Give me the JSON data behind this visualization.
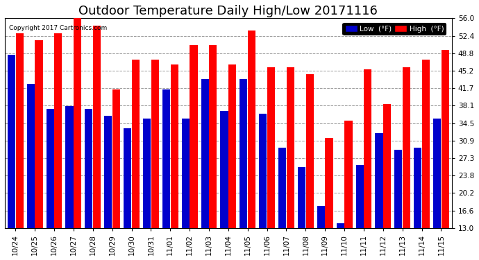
{
  "title": "Outdoor Temperature Daily High/Low 20171116",
  "copyright": "Copyright 2017 Cartronics.com",
  "categories": [
    "10/24",
    "10/25",
    "10/26",
    "10/27",
    "10/28",
    "10/29",
    "10/30",
    "10/31",
    "11/01",
    "11/02",
    "11/03",
    "11/04",
    "11/05",
    "11/06",
    "11/07",
    "11/08",
    "11/09",
    "11/10",
    "11/11",
    "11/12",
    "11/13",
    "11/14",
    "11/15"
  ],
  "high_values": [
    53.0,
    51.5,
    53.0,
    56.0,
    54.5,
    41.5,
    47.5,
    47.5,
    46.5,
    50.5,
    50.5,
    46.5,
    53.5,
    46.0,
    46.0,
    44.5,
    31.5,
    35.0,
    45.5,
    38.5,
    46.0,
    47.5,
    49.5
  ],
  "low_values": [
    48.5,
    42.5,
    37.5,
    38.0,
    37.5,
    36.0,
    33.5,
    35.5,
    41.5,
    35.5,
    43.5,
    37.0,
    43.5,
    36.5,
    29.5,
    25.5,
    17.5,
    14.0,
    26.0,
    32.5,
    29.0,
    29.5,
    35.5
  ],
  "bar_color_high": "#ff0000",
  "bar_color_low": "#0000cc",
  "bg_color": "#ffffff",
  "grid_color": "#999999",
  "ylim_min": 13.0,
  "ylim_max": 56.0,
  "yticks": [
    13.0,
    16.6,
    20.2,
    23.8,
    27.3,
    30.9,
    34.5,
    38.1,
    41.7,
    45.2,
    48.8,
    52.4,
    56.0
  ],
  "title_fontsize": 13,
  "axis_fontsize": 7.5,
  "legend_label_low": "Low  (°F)",
  "legend_label_high": "High  (°F)"
}
